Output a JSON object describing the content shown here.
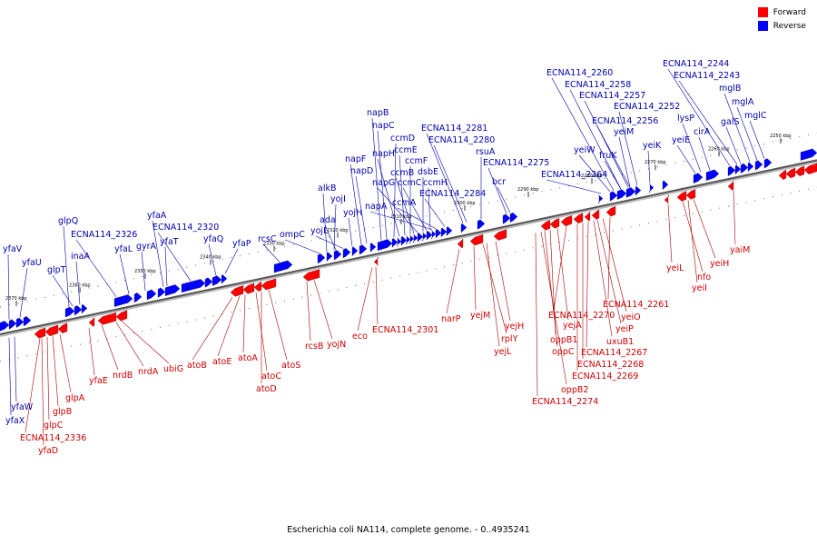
{
  "legend": {
    "forward_label": "Forward",
    "reverse_label": "Reverse",
    "forward_color": "#ff0000",
    "reverse_color": "#0000ff"
  },
  "caption": "Escherichia coli NA114, complete genome. - 0..4935241",
  "ticks": [
    "2370 kbp",
    "2360 kbp",
    "2350 kbp",
    "2340 kbp",
    "2330 kbp",
    "2320 kbp",
    "2310 kbp",
    "2300 kbp",
    "2290 kbp",
    "2280 kbp",
    "2270 kbp",
    "2260 kbp",
    "2250 kbp"
  ],
  "reverse_genes": [
    "yfaV",
    "yfaU",
    "glpQ",
    "glpT",
    "inaA",
    "ECNA114_2326",
    "yfaL",
    "gyrA",
    "yfaA",
    "yfaT",
    "ECNA114_2320",
    "yfaQ",
    "yfaP",
    "rcsC",
    "ompC",
    "alkB",
    "yojI",
    "ada",
    "yojL",
    "yojH",
    "napF",
    "napD",
    "napB",
    "napC",
    "ccmD",
    "napH",
    "ccmE",
    "ccmF",
    "ccmB",
    "napG",
    "dsbE",
    "ccmC",
    "ccmH",
    "napA",
    "ccmA",
    "ECNA114_2284",
    "ECNA114_2281",
    "ECNA114_2280",
    "rsuA",
    "ECNA114_2275",
    "bcr",
    "ECNA114_2264",
    "ECNA114_2260",
    "ECNA114_2258",
    "ECNA114_2257",
    "ECNA114_2252",
    "ECNA114_2256",
    "yeiW",
    "fruK",
    "yeiM",
    "yeiK",
    "yeiE",
    "lysP",
    "cirA",
    "ECNA114_2244",
    "ECNA114_2243",
    "mglB",
    "mglA",
    "mglC",
    "galS",
    "yfaW",
    "yfaX"
  ],
  "forward_genes": [
    "ECNA114_2336",
    "yfaD",
    "glpC",
    "glpB",
    "glpA",
    "yfaE",
    "nrdB",
    "nrdA",
    "ubiG",
    "atoB",
    "atoE",
    "atoA",
    "atoC",
    "atoD",
    "atoS",
    "rcsB",
    "yojN",
    "eco",
    "ECNA114_2301",
    "narP",
    "yejM",
    "rplY",
    "yejH",
    "yejL",
    "oppB2",
    "oppC",
    "oppB1",
    "ECNA114_2274",
    "yejA",
    "ECNA114_2270",
    "ECNA114_2269",
    "ECNA114_2268",
    "ECNA114_2267",
    "uxuB1",
    "yeiP",
    "yeiO",
    "ECNA114_2261",
    "yeiL",
    "nfo",
    "yeiI",
    "yeiH",
    "yaiM"
  ]
}
